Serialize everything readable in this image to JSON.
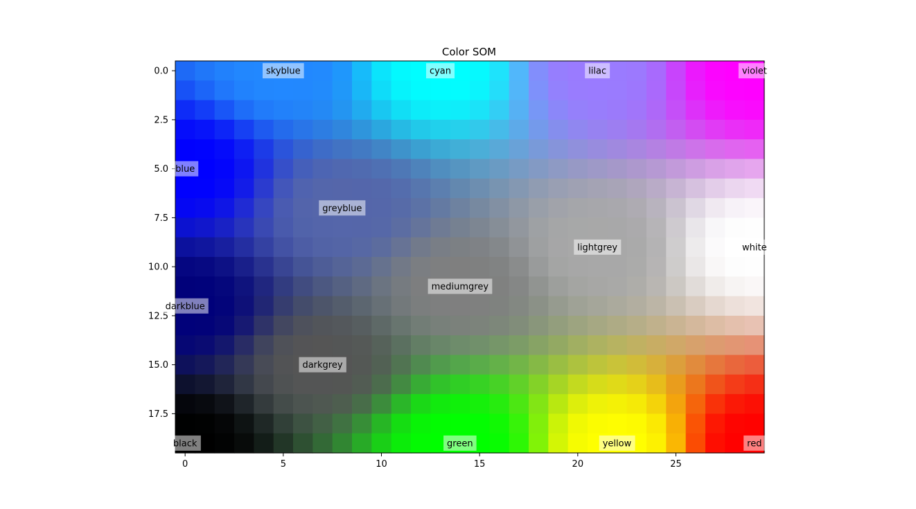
{
  "chart_data": {
    "type": "heatmap",
    "title": "Color SOM",
    "xlabel": "",
    "ylabel": "",
    "grid": false,
    "legend": "none",
    "ncols": 30,
    "nrows": 20,
    "xlim": [
      -0.5,
      29.5
    ],
    "ylim": [
      19.5,
      -0.5
    ],
    "x_ticks": [
      0,
      5,
      10,
      15,
      20,
      25
    ],
    "x_tick_labels": [
      "0",
      "5",
      "10",
      "15",
      "20",
      "25"
    ],
    "y_ticks": [
      0,
      2.5,
      5,
      7.5,
      10,
      12.5,
      15,
      17.5
    ],
    "y_tick_labels": [
      "0.0",
      "2.5",
      "5.0",
      "7.5",
      "10.0",
      "12.5",
      "15.0",
      "17.5"
    ],
    "anchor_colors": [
      {
        "name": "skyblue",
        "x": 5,
        "y": 0,
        "color": "#2288ff"
      },
      {
        "name": "cyan",
        "x": 13,
        "y": 0,
        "color": "#00ffff"
      },
      {
        "name": "lilac",
        "x": 21,
        "y": 0,
        "color": "#9a7bff"
      },
      {
        "name": "violet",
        "x": 29,
        "y": 0,
        "color": "#ff00ff"
      },
      {
        "name": "blue",
        "x": 0,
        "y": 5,
        "color": "#0000ff"
      },
      {
        "name": "greyblue",
        "x": 8,
        "y": 7,
        "color": "#5566aa"
      },
      {
        "name": "white",
        "x": 29,
        "y": 9,
        "color": "#ffffff"
      },
      {
        "name": "lightgrey",
        "x": 21,
        "y": 9,
        "color": "#a8a8a8"
      },
      {
        "name": "mediumgrey",
        "x": 14,
        "y": 11,
        "color": "#7f7f7f"
      },
      {
        "name": "darkblue",
        "x": 0,
        "y": 12,
        "color": "#00007a"
      },
      {
        "name": "darkgrey",
        "x": 7,
        "y": 15,
        "color": "#555555"
      },
      {
        "name": "black",
        "x": 0,
        "y": 19,
        "color": "#000000"
      },
      {
        "name": "green",
        "x": 14,
        "y": 19,
        "color": "#00ff00"
      },
      {
        "name": "yellow",
        "x": 22,
        "y": 19,
        "color": "#ffff00"
      },
      {
        "name": "red",
        "x": 29,
        "y": 19,
        "color": "#ff0000"
      }
    ],
    "annotations": [
      {
        "text": "skyblue",
        "x": 5,
        "y": 0
      },
      {
        "text": "cyan",
        "x": 13,
        "y": 0
      },
      {
        "text": "lilac",
        "x": 21,
        "y": 0
      },
      {
        "text": "violet",
        "x": 29,
        "y": 0
      },
      {
        "text": "blue",
        "x": 0,
        "y": 5
      },
      {
        "text": "greyblue",
        "x": 8,
        "y": 7
      },
      {
        "text": "lightgrey",
        "x": 21,
        "y": 9
      },
      {
        "text": "white",
        "x": 29,
        "y": 9
      },
      {
        "text": "mediumgrey",
        "x": 14,
        "y": 11
      },
      {
        "text": "darkblue",
        "x": 0,
        "y": 12
      },
      {
        "text": "darkgrey",
        "x": 7,
        "y": 15
      },
      {
        "text": "black",
        "x": 0,
        "y": 19
      },
      {
        "text": "green",
        "x": 14,
        "y": 19
      },
      {
        "text": "yellow",
        "x": 22,
        "y": 19
      },
      {
        "text": "red",
        "x": 29,
        "y": 19
      }
    ]
  }
}
